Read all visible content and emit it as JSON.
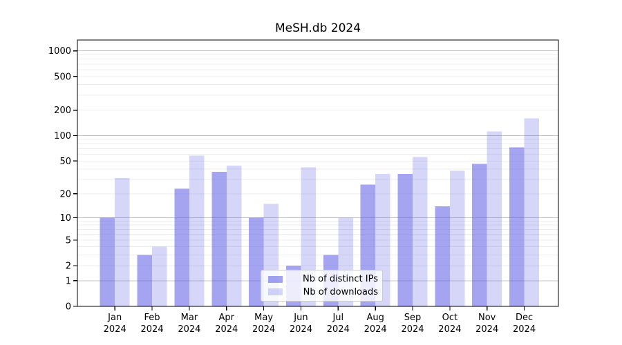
{
  "chart_data": {
    "type": "bar",
    "title": "MeSH.db 2024",
    "categories": [
      "Jan",
      "Feb",
      "Mar",
      "Apr",
      "May",
      "Jun",
      "Jul",
      "Aug",
      "Sep",
      "Oct",
      "Nov",
      "Dec"
    ],
    "year_label": "2024",
    "series": [
      {
        "name": "Nb of distinct IPs",
        "color": "rgba(90,90,228,0.55)",
        "values": [
          10,
          3,
          23,
          37,
          10,
          2,
          3,
          26,
          35,
          14,
          46,
          73
        ]
      },
      {
        "name": "Nb of downloads",
        "color": "rgba(90,90,228,0.25)",
        "values": [
          31,
          4,
          58,
          44,
          15,
          42,
          10,
          35,
          56,
          38,
          112,
          160
        ]
      }
    ],
    "yticks": [
      0,
      1,
      2,
      5,
      10,
      20,
      50,
      100,
      200,
      500,
      1000
    ],
    "yscale": "log10(1+x)",
    "ylim": [
      0,
      1340
    ],
    "xlabel": "",
    "ylabel": "",
    "grid": "horizontal",
    "legend_position": "lower-center"
  },
  "colors": {
    "background": "#ffffff",
    "axis": "#000000",
    "grid_major": "#c3c3c3",
    "grid_minor": "#ededed",
    "legend_border": "#cccccc",
    "legend_background": "rgba(255,255,255,0.8)"
  }
}
